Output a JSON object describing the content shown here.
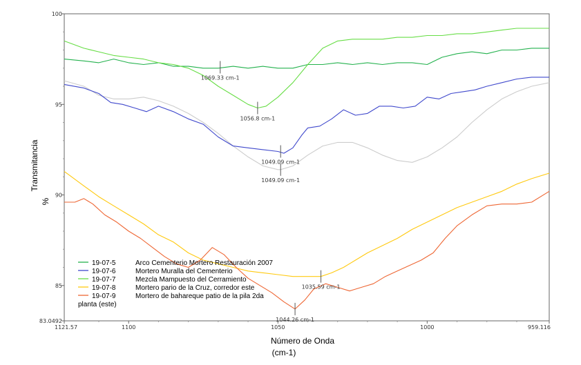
{
  "chart_data": {
    "type": "line",
    "xlabel": "Número de Onda",
    "xlabel_unit": "(cm-1)",
    "ylabel": "Transmitancia",
    "ylabel_unit": "%",
    "xlim": [
      1121.57,
      959.116
    ],
    "ylim": [
      83.0492,
      100
    ],
    "x_ticks": [
      {
        "value": 1121.57,
        "label": "1121.57"
      },
      {
        "value": 1100,
        "label": "1100"
      },
      {
        "value": 1050,
        "label": "1050"
      },
      {
        "value": 1000,
        "label": "1000"
      },
      {
        "value": 959.116,
        "label": "959.116"
      }
    ],
    "y_ticks": [
      {
        "value": 100,
        "label": "100"
      },
      {
        "value": 95,
        "label": "95"
      },
      {
        "value": 90,
        "label": "90"
      },
      {
        "value": 85,
        "label": "85"
      },
      {
        "value": 83.0492,
        "label": "83.0492"
      }
    ],
    "series": [
      {
        "name": "19-07-5",
        "description": "Arco Cementerio Mortero Restauración 2007",
        "color": "#22b14c",
        "x": [
          1121.57,
          1115,
          1110,
          1105,
          1100,
          1095,
          1090,
          1085,
          1080,
          1075,
          1070,
          1065,
          1060,
          1055,
          1050,
          1045,
          1040,
          1035,
          1030,
          1025,
          1020,
          1015,
          1010,
          1005,
          1000,
          995,
          990,
          985,
          980,
          975,
          970,
          965,
          959.116
        ],
        "y": [
          97.5,
          97.4,
          97.3,
          97.5,
          97.3,
          97.2,
          97.3,
          97.1,
          97.1,
          97.0,
          97.0,
          97.1,
          97.0,
          97.1,
          97.0,
          97.0,
          97.2,
          97.2,
          97.3,
          97.2,
          97.3,
          97.2,
          97.3,
          97.3,
          97.2,
          97.6,
          97.8,
          97.9,
          97.8,
          98.0,
          98.0,
          98.1,
          98.1
        ]
      },
      {
        "name": "19-07-6",
        "description": "Mortero Muralla del Cementerio",
        "color": "#3f48cc",
        "x": [
          1121.57,
          1115,
          1110,
          1106,
          1102,
          1098,
          1094,
          1090,
          1085,
          1080,
          1075,
          1070,
          1065,
          1060,
          1055,
          1050,
          1048,
          1045,
          1042,
          1040,
          1036,
          1032,
          1028,
          1024,
          1020,
          1016,
          1012,
          1008,
          1004,
          1000,
          996,
          992,
          988,
          984,
          980,
          975,
          970,
          965,
          959.116
        ],
        "y": [
          96.1,
          95.9,
          95.6,
          95.1,
          95.0,
          94.8,
          94.6,
          94.9,
          94.6,
          94.2,
          93.9,
          93.2,
          92.7,
          92.6,
          92.5,
          92.4,
          92.3,
          92.6,
          93.3,
          93.7,
          93.8,
          94.2,
          94.7,
          94.4,
          94.5,
          94.9,
          94.9,
          94.8,
          94.9,
          95.4,
          95.3,
          95.6,
          95.7,
          95.8,
          96.0,
          96.2,
          96.4,
          96.5,
          96.5
        ]
      },
      {
        "name": "19-07-7",
        "description": "Mezcla Mampuesto del Cerramiento",
        "color": "#66dd44",
        "x": [
          1121.57,
          1115,
          1110,
          1105,
          1100,
          1095,
          1090,
          1085,
          1080,
          1075,
          1070,
          1065,
          1060,
          1056.8,
          1054,
          1050,
          1045,
          1040,
          1035,
          1030,
          1025,
          1020,
          1015,
          1010,
          1005,
          1000,
          995,
          990,
          985,
          980,
          975,
          970,
          965,
          959.116
        ],
        "y": [
          98.5,
          98.1,
          97.9,
          97.7,
          97.6,
          97.5,
          97.3,
          97.2,
          97.0,
          96.6,
          96.0,
          95.5,
          95.0,
          94.8,
          94.9,
          95.4,
          96.2,
          97.2,
          98.1,
          98.5,
          98.6,
          98.6,
          98.6,
          98.7,
          98.7,
          98.8,
          98.8,
          98.9,
          98.9,
          99.0,
          99.1,
          99.2,
          99.2,
          99.2
        ]
      },
      {
        "name": "19-07-8",
        "description": "Mortero pario de la Cruz,  corredor este",
        "color": "#ffc90e",
        "x": [
          1121.57,
          1115,
          1110,
          1105,
          1100,
          1095,
          1090,
          1085,
          1080,
          1075,
          1070,
          1065,
          1060,
          1055,
          1050,
          1045,
          1040,
          1035.59,
          1032,
          1028,
          1024,
          1020,
          1015,
          1010,
          1005,
          1000,
          995,
          990,
          985,
          980,
          975,
          970,
          965,
          959.116
        ],
        "y": [
          91.3,
          90.5,
          89.9,
          89.4,
          88.9,
          88.4,
          87.8,
          87.4,
          86.8,
          86.4,
          86.2,
          86.0,
          85.8,
          85.7,
          85.6,
          85.5,
          85.5,
          85.5,
          85.7,
          86.0,
          86.4,
          86.8,
          87.2,
          87.6,
          88.1,
          88.5,
          88.9,
          89.3,
          89.6,
          89.9,
          90.2,
          90.6,
          90.9,
          91.2
        ]
      },
      {
        "name": "19-07-9",
        "description": "Mortero de bahareque patio de la pila 2da planta (este)",
        "color": "#ee6633",
        "x": [
          1121.57,
          1118,
          1115,
          1112,
          1108,
          1104,
          1100,
          1096,
          1092,
          1088,
          1084,
          1080,
          1076,
          1072,
          1068,
          1064,
          1060,
          1056,
          1052,
          1048,
          1044.26,
          1041,
          1038,
          1034,
          1030,
          1026,
          1022,
          1018,
          1014,
          1010,
          1006,
          1002,
          998,
          994,
          990,
          985,
          980,
          975,
          970,
          965,
          959.116
        ],
        "y": [
          89.6,
          89.6,
          89.8,
          89.5,
          88.9,
          88.5,
          88.0,
          87.6,
          87.1,
          86.6,
          86.2,
          86.0,
          86.4,
          87.1,
          86.7,
          86.0,
          85.4,
          85.0,
          84.6,
          84.1,
          83.7,
          84.2,
          84.8,
          85.1,
          84.9,
          84.7,
          84.9,
          85.1,
          85.5,
          85.8,
          86.1,
          86.4,
          86.8,
          87.6,
          88.3,
          88.9,
          89.4,
          89.5,
          89.5,
          89.6,
          90.2
        ]
      },
      {
        "name": "",
        "color": "#cccccc",
        "x": [
          1121.57,
          1115,
          1110,
          1105,
          1100,
          1095,
          1090,
          1085,
          1080,
          1075,
          1070,
          1065,
          1060,
          1055,
          1050,
          1049.09,
          1045,
          1040,
          1035,
          1030,
          1025,
          1020,
          1015,
          1010,
          1005,
          1000,
          995,
          990,
          985,
          980,
          975,
          970,
          965,
          959.116
        ],
        "y": [
          96.3,
          96.0,
          95.5,
          95.3,
          95.3,
          95.4,
          95.2,
          94.9,
          94.5,
          94.0,
          93.4,
          92.7,
          92.1,
          91.6,
          91.4,
          91.4,
          91.6,
          92.2,
          92.7,
          92.9,
          92.9,
          92.6,
          92.2,
          91.9,
          91.8,
          92.1,
          92.6,
          93.2,
          94.0,
          94.7,
          95.3,
          95.7,
          96.0,
          96.2
        ]
      }
    ],
    "annotations": [
      {
        "label": "1069.33 cm-1",
        "x": 1069.33,
        "y": 97.05
      },
      {
        "label": "1056.8 cm-1",
        "x": 1056.8,
        "y": 94.8
      },
      {
        "label": "1049.09 cm-1",
        "x": 1049.09,
        "y": 92.4
      },
      {
        "label": "1049.09 cm-1",
        "x": 1049.09,
        "y": 91.4
      },
      {
        "label": "1035.59 cm-1",
        "x": 1035.59,
        "y": 85.5
      },
      {
        "label": "1044.26 cm-1",
        "x": 1044.26,
        "y": 83.7
      }
    ],
    "legend": {
      "placement": "bottom-left",
      "entries": [
        {
          "id": "19-07-5",
          "text": "Arco Cementerio Mortero Restauración 2007",
          "color": "#22b14c"
        },
        {
          "id": "19-07-6",
          "text": "Mortero Muralla del Cementerio",
          "color": "#3f48cc"
        },
        {
          "id": "19-07-7",
          "text": "Mezcla Mampuesto del Cerramiento",
          "color": "#66dd44"
        },
        {
          "id": "19-07-8",
          "text": "Mortero pario de la Cruz,  corredor este",
          "color": "#ffc90e"
        },
        {
          "id": "19-07-9",
          "text": "Mortero de bahareque patio de la pila 2da",
          "color": "#ee6633"
        }
      ],
      "wrap_text": "planta (este)"
    },
    "grid": false
  }
}
